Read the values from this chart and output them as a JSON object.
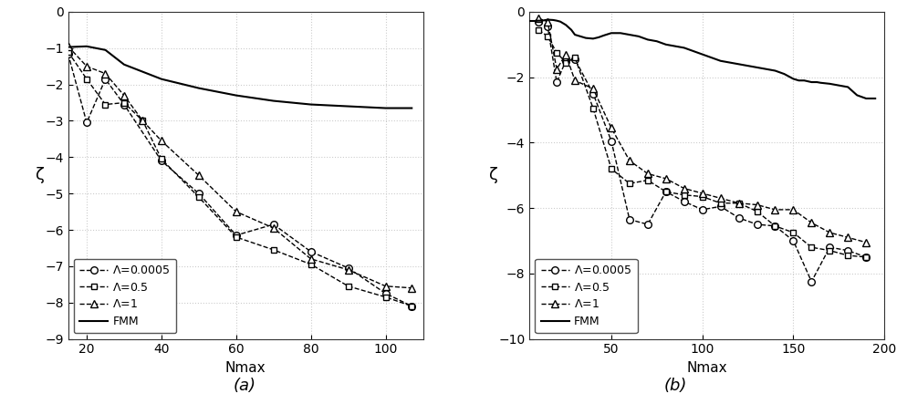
{
  "panel_a": {
    "xlim": [
      15,
      110
    ],
    "ylim": [
      -9,
      0
    ],
    "xticks": [
      20,
      40,
      60,
      80,
      100
    ],
    "yticks": [
      0,
      -1,
      -2,
      -3,
      -4,
      -5,
      -6,
      -7,
      -8,
      -9
    ],
    "xlabel": "Nmax",
    "ylabel": "ζ",
    "lambda0005_x": [
      15,
      20,
      25,
      30,
      40,
      50,
      60,
      70,
      80,
      90,
      100,
      107
    ],
    "lambda0005_y": [
      -1.15,
      -3.05,
      -1.85,
      -2.55,
      -4.1,
      -5.0,
      -6.15,
      -5.85,
      -6.6,
      -7.05,
      -7.75,
      -8.1
    ],
    "lambda05_x": [
      15,
      20,
      25,
      30,
      35,
      40,
      50,
      60,
      70,
      80,
      90,
      100,
      107
    ],
    "lambda05_y": [
      -1.1,
      -1.85,
      -2.55,
      -2.5,
      -3.0,
      -4.05,
      -5.1,
      -6.2,
      -6.55,
      -6.95,
      -7.55,
      -7.85,
      -8.1
    ],
    "lambda1_x": [
      15,
      20,
      25,
      30,
      35,
      40,
      50,
      60,
      70,
      80,
      90,
      100,
      107
    ],
    "lambda1_y": [
      -0.95,
      -1.5,
      -1.7,
      -2.3,
      -3.0,
      -3.55,
      -4.5,
      -5.5,
      -5.95,
      -6.8,
      -7.1,
      -7.55,
      -7.6
    ],
    "fmm_x": [
      15,
      20,
      25,
      30,
      40,
      50,
      60,
      70,
      80,
      90,
      100,
      107
    ],
    "fmm_y": [
      -0.97,
      -0.95,
      -1.05,
      -1.45,
      -1.85,
      -2.1,
      -2.3,
      -2.45,
      -2.55,
      -2.6,
      -2.65,
      -2.65
    ]
  },
  "panel_b": {
    "xlim": [
      5,
      200
    ],
    "ylim": [
      -10,
      0
    ],
    "xticks": [
      50,
      100,
      150,
      200
    ],
    "yticks": [
      0,
      -2,
      -4,
      -6,
      -8,
      -10
    ],
    "xlabel": "Nmax",
    "ylabel": "ζ",
    "lambda0005_x": [
      10,
      15,
      20,
      25,
      30,
      40,
      50,
      60,
      70,
      80,
      90,
      100,
      110,
      120,
      130,
      140,
      150,
      160,
      170,
      180,
      190
    ],
    "lambda0005_y": [
      -0.3,
      -0.45,
      -2.15,
      -1.5,
      -1.45,
      -2.5,
      -3.95,
      -6.35,
      -6.5,
      -5.5,
      -5.8,
      -6.05,
      -5.95,
      -6.3,
      -6.5,
      -6.55,
      -7.0,
      -8.25,
      -7.2,
      -7.3,
      -7.5
    ],
    "lambda05_x": [
      10,
      15,
      20,
      25,
      30,
      40,
      50,
      60,
      70,
      80,
      90,
      100,
      110,
      120,
      130,
      140,
      150,
      160,
      170,
      180,
      190
    ],
    "lambda05_y": [
      -0.55,
      -0.75,
      -1.25,
      -1.55,
      -1.4,
      -2.95,
      -4.8,
      -5.25,
      -5.15,
      -5.5,
      -5.6,
      -5.65,
      -5.85,
      -5.85,
      -6.1,
      -6.55,
      -6.75,
      -7.2,
      -7.3,
      -7.45,
      -7.5
    ],
    "lambda1_x": [
      10,
      15,
      20,
      25,
      30,
      40,
      50,
      60,
      70,
      80,
      90,
      100,
      110,
      120,
      130,
      140,
      150,
      160,
      170,
      180,
      190
    ],
    "lambda1_y": [
      -0.2,
      -0.3,
      -1.75,
      -1.3,
      -2.1,
      -2.35,
      -3.55,
      -4.55,
      -4.95,
      -5.1,
      -5.4,
      -5.55,
      -5.7,
      -5.85,
      -5.9,
      -6.05,
      -6.05,
      -6.45,
      -6.75,
      -6.9,
      -7.05
    ],
    "fmm_x": [
      5,
      8,
      10,
      12,
      15,
      18,
      20,
      22,
      25,
      28,
      30,
      33,
      36,
      40,
      43,
      46,
      50,
      55,
      60,
      65,
      70,
      75,
      80,
      85,
      90,
      95,
      100,
      105,
      110,
      115,
      120,
      125,
      130,
      135,
      140,
      145,
      150,
      153,
      156,
      160,
      163,
      165,
      170,
      175,
      180,
      185,
      190,
      195
    ],
    "fmm_y": [
      -0.28,
      -0.28,
      -0.27,
      -0.27,
      -0.24,
      -0.25,
      -0.27,
      -0.3,
      -0.4,
      -0.55,
      -0.7,
      -0.75,
      -0.8,
      -0.82,
      -0.78,
      -0.72,
      -0.65,
      -0.65,
      -0.7,
      -0.75,
      -0.85,
      -0.9,
      -1.0,
      -1.05,
      -1.1,
      -1.2,
      -1.3,
      -1.4,
      -1.5,
      -1.55,
      -1.6,
      -1.65,
      -1.7,
      -1.75,
      -1.8,
      -1.9,
      -2.05,
      -2.1,
      -2.1,
      -2.15,
      -2.15,
      -2.17,
      -2.2,
      -2.25,
      -2.3,
      -2.55,
      -2.65,
      -2.65
    ]
  },
  "line_color": "#000000",
  "background_color": "#ffffff",
  "grid_color": "#cccccc"
}
